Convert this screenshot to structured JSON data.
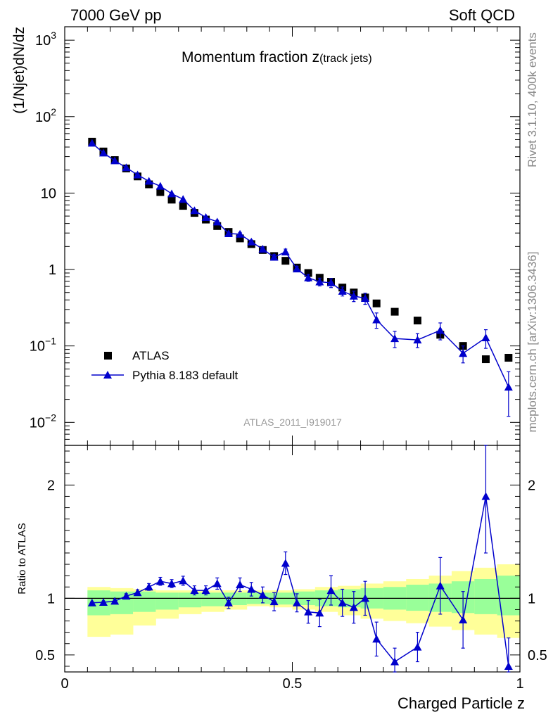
{
  "header": {
    "left": "7000 GeV pp",
    "right": "Soft QCD"
  },
  "side": {
    "rivet": "Rivet 3.1.10,  400k events",
    "mcplots": "mcplots.cern.ch [arXiv:1306.3436]"
  },
  "chart_data": [
    {
      "type": "scatter",
      "title_main": "Momentum fraction z",
      "title_sub": "(track jets)",
      "ylabel": "(1/Njet)dN/dz",
      "yscale": "log",
      "ylim": [
        0.005,
        1500
      ],
      "xlim": [
        0,
        1
      ],
      "analysis_label": "ATLAS_2011_I919017",
      "legend": {
        "placement": "bottom-left",
        "data_label": "ATLAS",
        "mc_label": "Pythia 8.183 default"
      },
      "y_ticks": [
        {
          "value": 1000,
          "base": "10",
          "exp": "3",
          "label": ""
        },
        {
          "value": 100,
          "base": "10",
          "exp": "2",
          "label": ""
        },
        {
          "value": 10,
          "base": "",
          "exp": "",
          "label": "10"
        },
        {
          "value": 1,
          "base": "",
          "exp": "",
          "label": "1"
        },
        {
          "value": 0.1,
          "base": "10",
          "exp": "−1",
          "label": ""
        },
        {
          "value": 0.01,
          "base": "10",
          "exp": "−2",
          "label": ""
        }
      ],
      "atlas": {
        "x": [
          0.06,
          0.085,
          0.11,
          0.135,
          0.16,
          0.185,
          0.21,
          0.235,
          0.26,
          0.285,
          0.31,
          0.335,
          0.36,
          0.385,
          0.41,
          0.435,
          0.46,
          0.485,
          0.51,
          0.535,
          0.56,
          0.585,
          0.61,
          0.635,
          0.66,
          0.685,
          0.725,
          0.775,
          0.825,
          0.875,
          0.925,
          0.975
        ],
        "y": [
          47,
          35,
          27,
          21,
          16.5,
          13,
          10.3,
          8.2,
          6.8,
          5.5,
          4.5,
          3.7,
          3.1,
          2.55,
          2.15,
          1.8,
          1.5,
          1.3,
          1.06,
          0.9,
          0.78,
          0.69,
          0.58,
          0.5,
          0.43,
          0.36,
          0.28,
          0.215,
          0.14,
          0.1,
          0.067,
          0.07
        ]
      },
      "pythia": {
        "x": [
          0.06,
          0.085,
          0.11,
          0.135,
          0.16,
          0.185,
          0.21,
          0.235,
          0.26,
          0.285,
          0.31,
          0.335,
          0.36,
          0.385,
          0.41,
          0.435,
          0.46,
          0.485,
          0.51,
          0.535,
          0.56,
          0.585,
          0.61,
          0.635,
          0.66,
          0.685,
          0.725,
          0.775,
          0.825,
          0.875,
          0.925,
          0.975
        ],
        "y": [
          45,
          33.5,
          26.5,
          21.5,
          17.3,
          14.3,
          12.3,
          9.8,
          8.3,
          5.9,
          4.8,
          4.2,
          2.95,
          2.9,
          2.3,
          1.85,
          1.45,
          1.7,
          1.02,
          0.78,
          0.69,
          0.67,
          0.52,
          0.45,
          0.42,
          0.22,
          0.125,
          0.12,
          0.16,
          0.08,
          0.128,
          0.029
        ],
        "yerr": [
          1,
          0.7,
          0.5,
          0.4,
          0.35,
          0.3,
          0.3,
          0.25,
          0.25,
          0.2,
          0.2,
          0.2,
          0.15,
          0.15,
          0.13,
          0.12,
          0.12,
          0.15,
          0.08,
          0.08,
          0.08,
          0.09,
          0.07,
          0.07,
          0.07,
          0.05,
          0.03,
          0.025,
          0.04,
          0.02,
          0.035,
          0.017
        ]
      }
    },
    {
      "type": "scatter",
      "ylabel": "Ratio to ATLAS",
      "xlabel": "Charged Particle z",
      "ylim": [
        0.35,
        2.35
      ],
      "xlim": [
        0,
        1
      ],
      "y_ticks": [
        0.5,
        1,
        2
      ],
      "x_ticks": [
        {
          "value": 0,
          "label": "0"
        },
        {
          "value": 0.5,
          "label": "0.5"
        },
        {
          "value": 1,
          "label": "1"
        }
      ],
      "band_edges": [
        0.05,
        0.1,
        0.15,
        0.2,
        0.25,
        0.3,
        0.35,
        0.4,
        0.45,
        0.5,
        0.55,
        0.6,
        0.65,
        0.7,
        0.75,
        0.8,
        0.85,
        0.9,
        0.95,
        1.0
      ],
      "band_inner_lo": [
        0.85,
        0.86,
        0.88,
        0.9,
        0.92,
        0.93,
        0.94,
        0.95,
        0.945,
        0.94,
        0.93,
        0.92,
        0.91,
        0.9,
        0.89,
        0.88,
        0.87,
        0.86,
        0.85
      ],
      "band_inner_hi": [
        1.07,
        1.06,
        1.06,
        1.05,
        1.05,
        1.05,
        1.05,
        1.05,
        1.05,
        1.06,
        1.07,
        1.08,
        1.09,
        1.1,
        1.12,
        1.13,
        1.15,
        1.17,
        1.2
      ],
      "band_outer_lo": [
        0.66,
        0.68,
        0.76,
        0.82,
        0.86,
        0.88,
        0.9,
        0.93,
        0.92,
        0.9,
        0.88,
        0.85,
        0.82,
        0.8,
        0.78,
        0.75,
        0.72,
        0.68,
        0.65
      ],
      "band_outer_hi": [
        1.1,
        1.09,
        1.08,
        1.07,
        1.07,
        1.07,
        1.07,
        1.07,
        1.07,
        1.08,
        1.1,
        1.11,
        1.13,
        1.15,
        1.17,
        1.2,
        1.24,
        1.27,
        1.3
      ],
      "ratio": {
        "x": [
          0.06,
          0.085,
          0.11,
          0.135,
          0.16,
          0.185,
          0.21,
          0.235,
          0.26,
          0.285,
          0.31,
          0.335,
          0.36,
          0.385,
          0.41,
          0.435,
          0.46,
          0.485,
          0.51,
          0.535,
          0.56,
          0.585,
          0.61,
          0.635,
          0.66,
          0.685,
          0.725,
          0.775,
          0.825,
          0.875,
          0.925,
          0.975
        ],
        "y": [
          0.96,
          0.965,
          0.975,
          1.02,
          1.05,
          1.1,
          1.15,
          1.13,
          1.155,
          1.07,
          1.07,
          1.13,
          0.96,
          1.12,
          1.08,
          1.03,
          0.97,
          1.31,
          0.96,
          0.88,
          0.87,
          1.07,
          0.96,
          0.92,
          1.0,
          0.64,
          0.44,
          0.57,
          1.11,
          0.81,
          1.9,
          0.4
        ],
        "yerr": [
          0.01,
          0.01,
          0.015,
          0.02,
          0.025,
          0.03,
          0.035,
          0.035,
          0.04,
          0.04,
          0.04,
          0.05,
          0.05,
          0.06,
          0.06,
          0.07,
          0.08,
          0.1,
          0.08,
          0.1,
          0.12,
          0.13,
          0.12,
          0.14,
          0.15,
          0.15,
          0.12,
          0.13,
          0.25,
          0.25,
          0.5,
          0.25
        ]
      }
    }
  ]
}
